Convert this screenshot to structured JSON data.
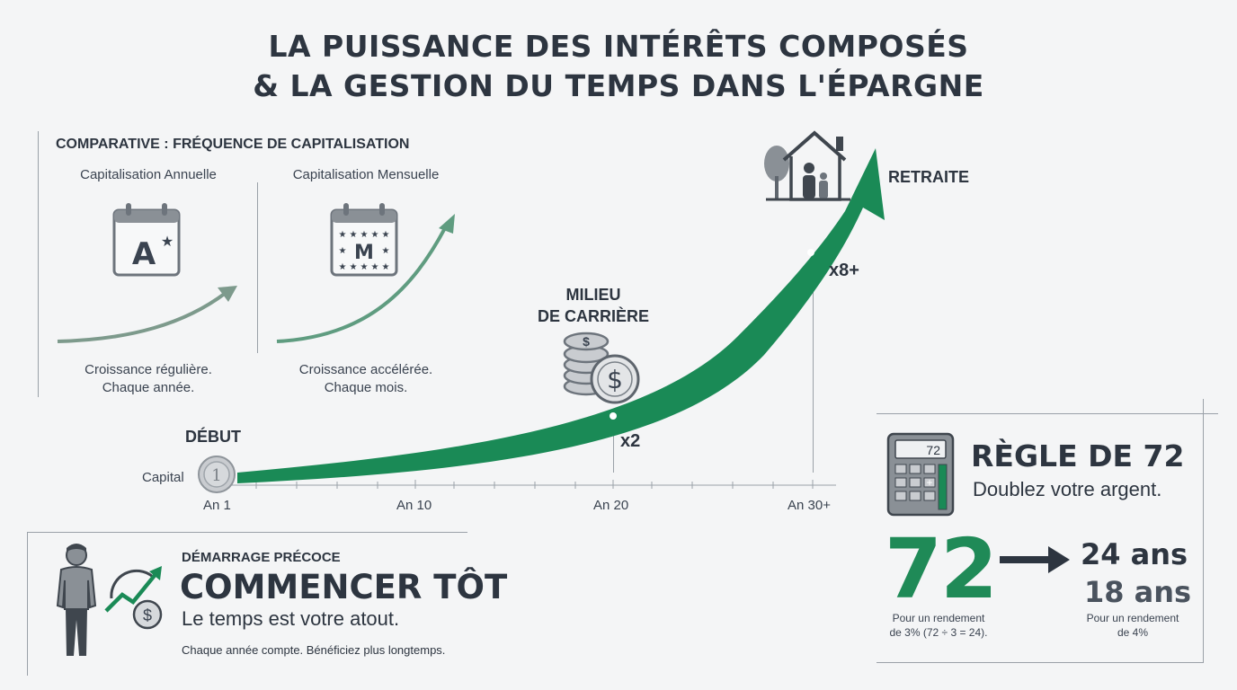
{
  "title": {
    "line1": "LA PUISSANCE DES INTÉRÊTS COMPOSÉS",
    "line2": "& LA GESTION DU TEMPS DANS L'ÉPARGNE"
  },
  "comparative": {
    "heading": "COMPARATIVE : FRÉQUENCE DE CAPITALISATION",
    "annual": {
      "label": "Capitalisation Annuelle",
      "icon_letter": "A",
      "caption_line1": "Croissance régulière.",
      "caption_line2": "Chaque année."
    },
    "monthly": {
      "label": "Capitalisation Mensuelle",
      "icon_letter": "M",
      "caption_line1": "Croissance accélérée.",
      "caption_line2": "Chaque mois."
    }
  },
  "timeline": {
    "start_label": "DÉBUT",
    "capital_label": "Capital",
    "coin_value": "1",
    "mid_label_line1": "MILIEU",
    "mid_label_line2": "DE CARRIÈRE",
    "mid_multiplier": "x2",
    "end_label": "RETRAITE",
    "end_multiplier": "x8+",
    "axis_ticks": [
      "An 1",
      "An 10",
      "An 20",
      "An 30+"
    ],
    "accent_color": "#1a8a56"
  },
  "early_start": {
    "kicker": "DÉMARRAGE PRÉCOCE",
    "headline": "COMMENCER TÔT",
    "subline": "Le temps est votre atout.",
    "note": "Chaque année compte. Bénéficiez plus longtemps."
  },
  "rule72": {
    "calc_display": "72",
    "heading": "RÈGLE DE 72",
    "subheading": "Doublez votre argent.",
    "big_number": "72",
    "result1": "24 ans",
    "result2": "18 ans",
    "note_left_line1": "Pour un rendement",
    "note_left_line2": "de 3% (72 ÷ 3 = 24).",
    "note_right_line1": "Pour un rendement",
    "note_right_line2": "de 4%"
  }
}
